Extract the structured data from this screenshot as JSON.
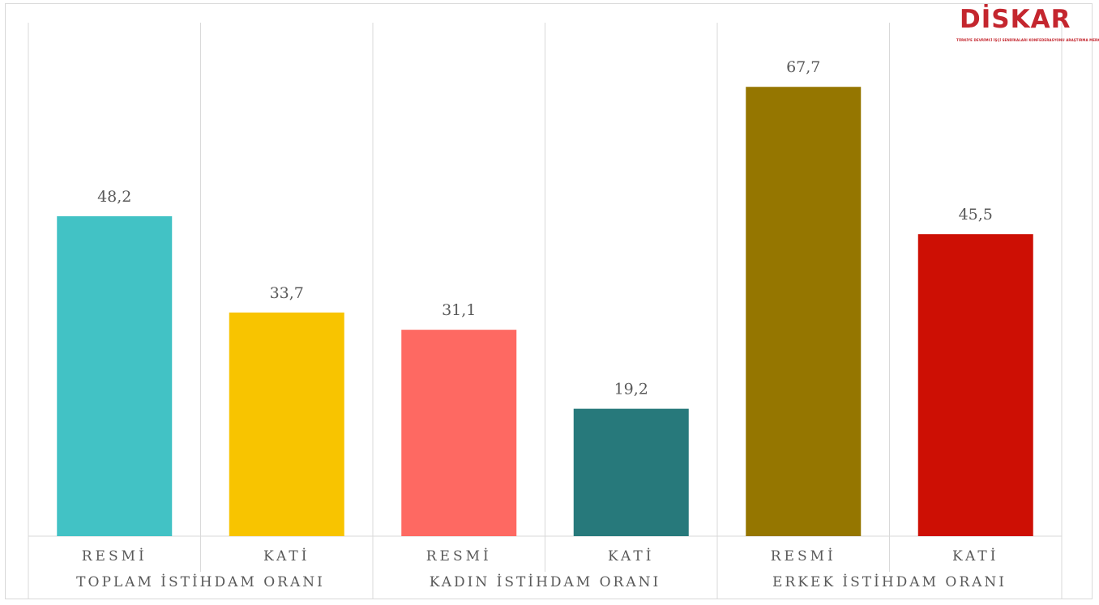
{
  "logo": {
    "text": "DİSKAR",
    "subtitle": "TÜRKİYE DEVRİMCİ İŞÇİ SENDİKALARI KONFEDERASYONU ARAŞTIRMA MERKEZİ"
  },
  "chart_data": {
    "type": "bar",
    "title": "",
    "xlabel": "",
    "ylabel": "",
    "ylim": [
      0,
      72
    ],
    "grid": false,
    "legend": "none",
    "groups": [
      {
        "label": "TOPLAM İSTİHDAM ORANI",
        "bars": [
          {
            "category": "RESMİ",
            "value": 48.2,
            "value_label": "48,2",
            "color": "#42c2c5"
          },
          {
            "category": "KATİ",
            "value": 33.7,
            "value_label": "33,7",
            "color": "#f8c400"
          }
        ]
      },
      {
        "label": "KADIN İSTİHDAM ORANI",
        "bars": [
          {
            "category": "RESMİ",
            "value": 31.1,
            "value_label": "31,1",
            "color": "#fe6962"
          },
          {
            "category": "KATİ",
            "value": 19.2,
            "value_label": "19,2",
            "color": "#27797b"
          }
        ]
      },
      {
        "label": "ERKEK İSTİHDAM ORANI",
        "bars": [
          {
            "category": "RESMİ",
            "value": 67.7,
            "value_label": "67,7",
            "color": "#957600"
          },
          {
            "category": "KATİ",
            "value": 45.5,
            "value_label": "45,5",
            "color": "#cd0f04"
          }
        ]
      }
    ]
  }
}
